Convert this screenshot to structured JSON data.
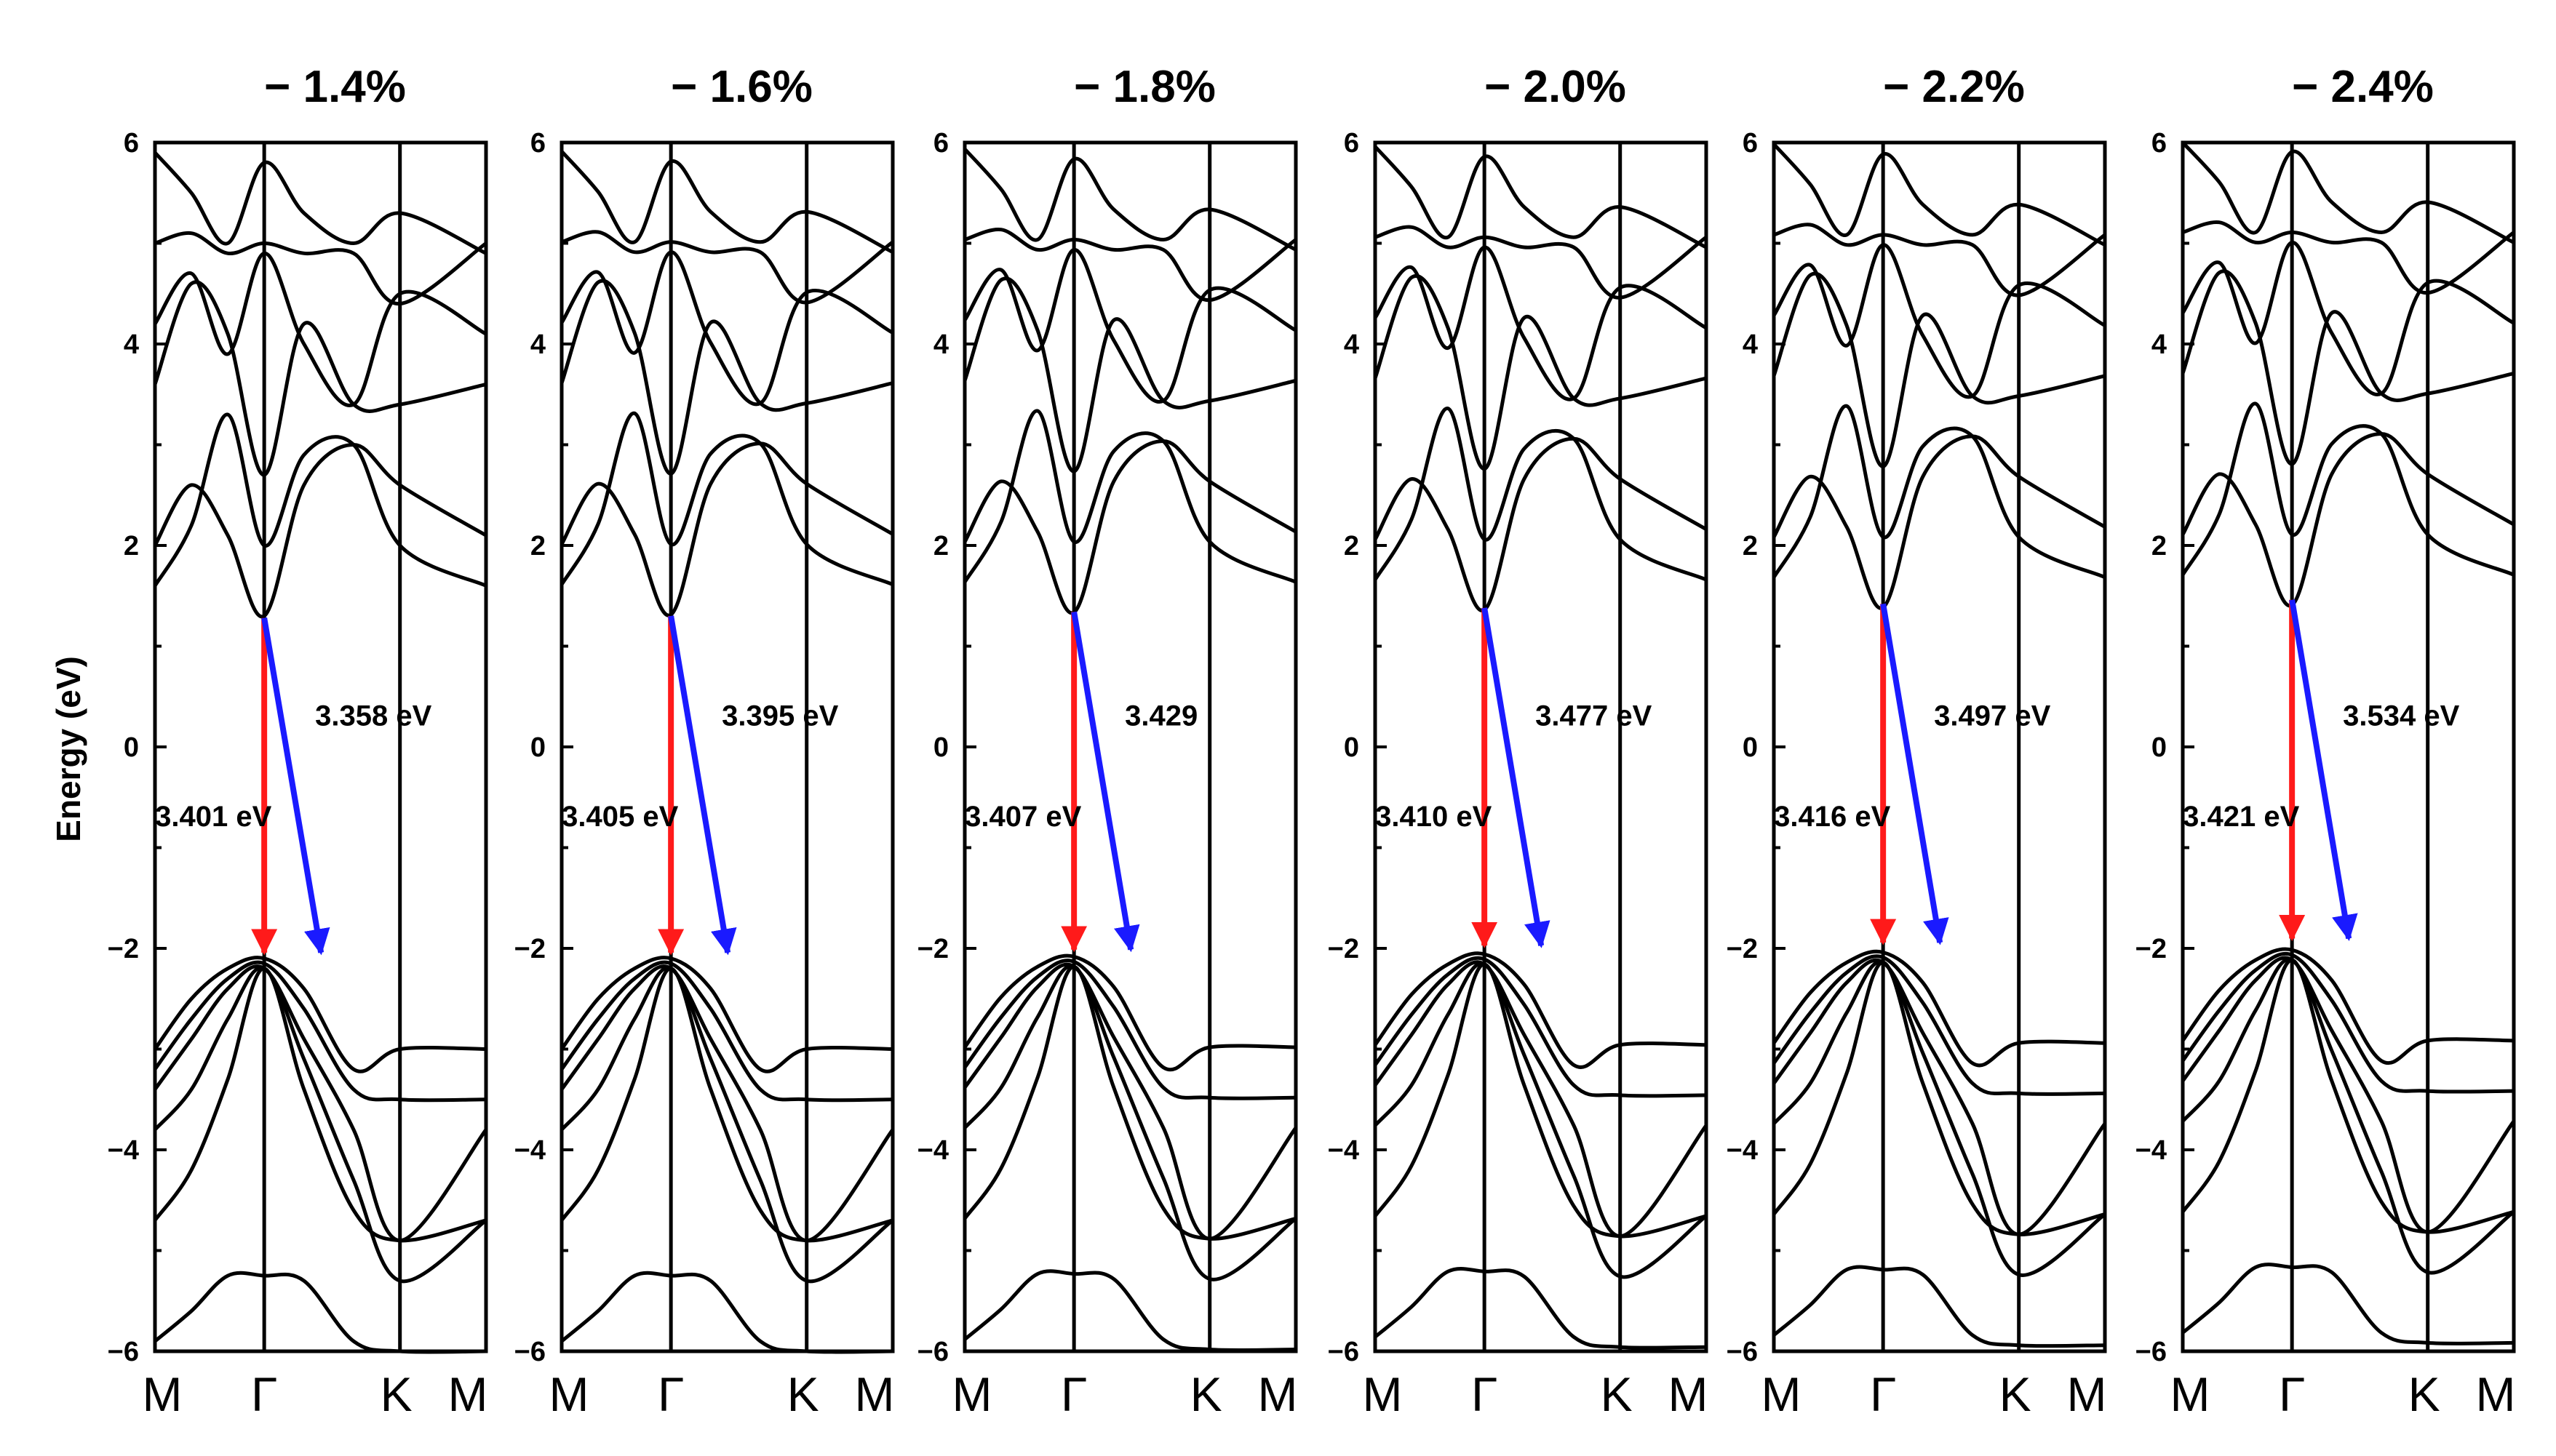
{
  "chart_data": {
    "type": "line",
    "ylabel": "Energy (eV)",
    "ylim": [
      -6,
      6
    ],
    "yticks": [
      -6,
      -4,
      -2,
      0,
      2,
      4,
      6
    ],
    "kpath": [
      "M",
      "Γ",
      "K",
      "M"
    ],
    "colors": {
      "direct": "#ff1a1a",
      "indirect": "#1a1aff",
      "bands": "#000000"
    },
    "panels": [
      {
        "title": "− 1.4%",
        "direct_gap": "3.401 eV",
        "indirect_gap": "3.358 eV",
        "cbm": 1.28,
        "vbm": -2.1
      },
      {
        "title": "− 1.6%",
        "direct_gap": "3.405 eV",
        "indirect_gap": "3.395 eV",
        "cbm": 1.3,
        "vbm": -2.1
      },
      {
        "title": "− 1.8%",
        "direct_gap": "3.407 eV",
        "indirect_gap": "3.429",
        "cbm": 1.34,
        "vbm": -2.07
      },
      {
        "title": "− 2.0%",
        "direct_gap": "3.410 eV",
        "indirect_gap": "3.477 eV",
        "cbm": 1.38,
        "vbm": -2.03
      },
      {
        "title": "− 2.2%",
        "direct_gap": "3.416 eV",
        "indirect_gap": "3.497 eV",
        "cbm": 1.42,
        "vbm": -2.0
      },
      {
        "title": "− 2.4%",
        "direct_gap": "3.421 eV",
        "indirect_gap": "3.534 eV",
        "cbm": 1.46,
        "vbm": -1.96
      }
    ],
    "bands": {
      "note": "approximate band energies (eV) sampled along M–Γ–K–M",
      "conduction": [
        [
          2.0,
          2.6,
          2.1,
          1.3,
          2.6,
          3.0,
          2.6,
          2.1
        ],
        [
          1.6,
          2.2,
          3.3,
          2.0,
          2.9,
          3.0,
          2.0,
          1.6
        ],
        [
          3.6,
          4.6,
          4.1,
          2.7,
          4.2,
          3.4,
          3.4,
          3.6
        ],
        [
          4.2,
          4.7,
          3.9,
          4.9,
          4.0,
          3.4,
          4.5,
          4.1
        ],
        [
          5.0,
          5.1,
          4.9,
          5.0,
          4.9,
          4.9,
          4.4,
          5.0
        ],
        [
          5.9,
          5.5,
          5.0,
          5.8,
          5.3,
          5.0,
          5.3,
          4.9
        ]
      ],
      "valence": [
        [
          -3.0,
          -2.5,
          -2.2,
          -2.1,
          -2.4,
          -3.2,
          -3.0,
          -3.0
        ],
        [
          -3.2,
          -2.7,
          -2.3,
          -2.15,
          -2.6,
          -3.4,
          -3.5,
          -3.5
        ],
        [
          -3.4,
          -2.9,
          -2.4,
          -2.2,
          -2.9,
          -3.8,
          -4.9,
          -3.8
        ],
        [
          -3.8,
          -3.4,
          -2.7,
          -2.2,
          -3.1,
          -4.3,
          -5.3,
          -4.7
        ],
        [
          -4.7,
          -4.2,
          -3.3,
          -2.2,
          -3.4,
          -4.6,
          -4.9,
          -4.7
        ],
        [
          -5.9,
          -5.6,
          -5.25,
          -5.25,
          -5.3,
          -5.9,
          -6.0,
          -6.0
        ]
      ]
    }
  }
}
